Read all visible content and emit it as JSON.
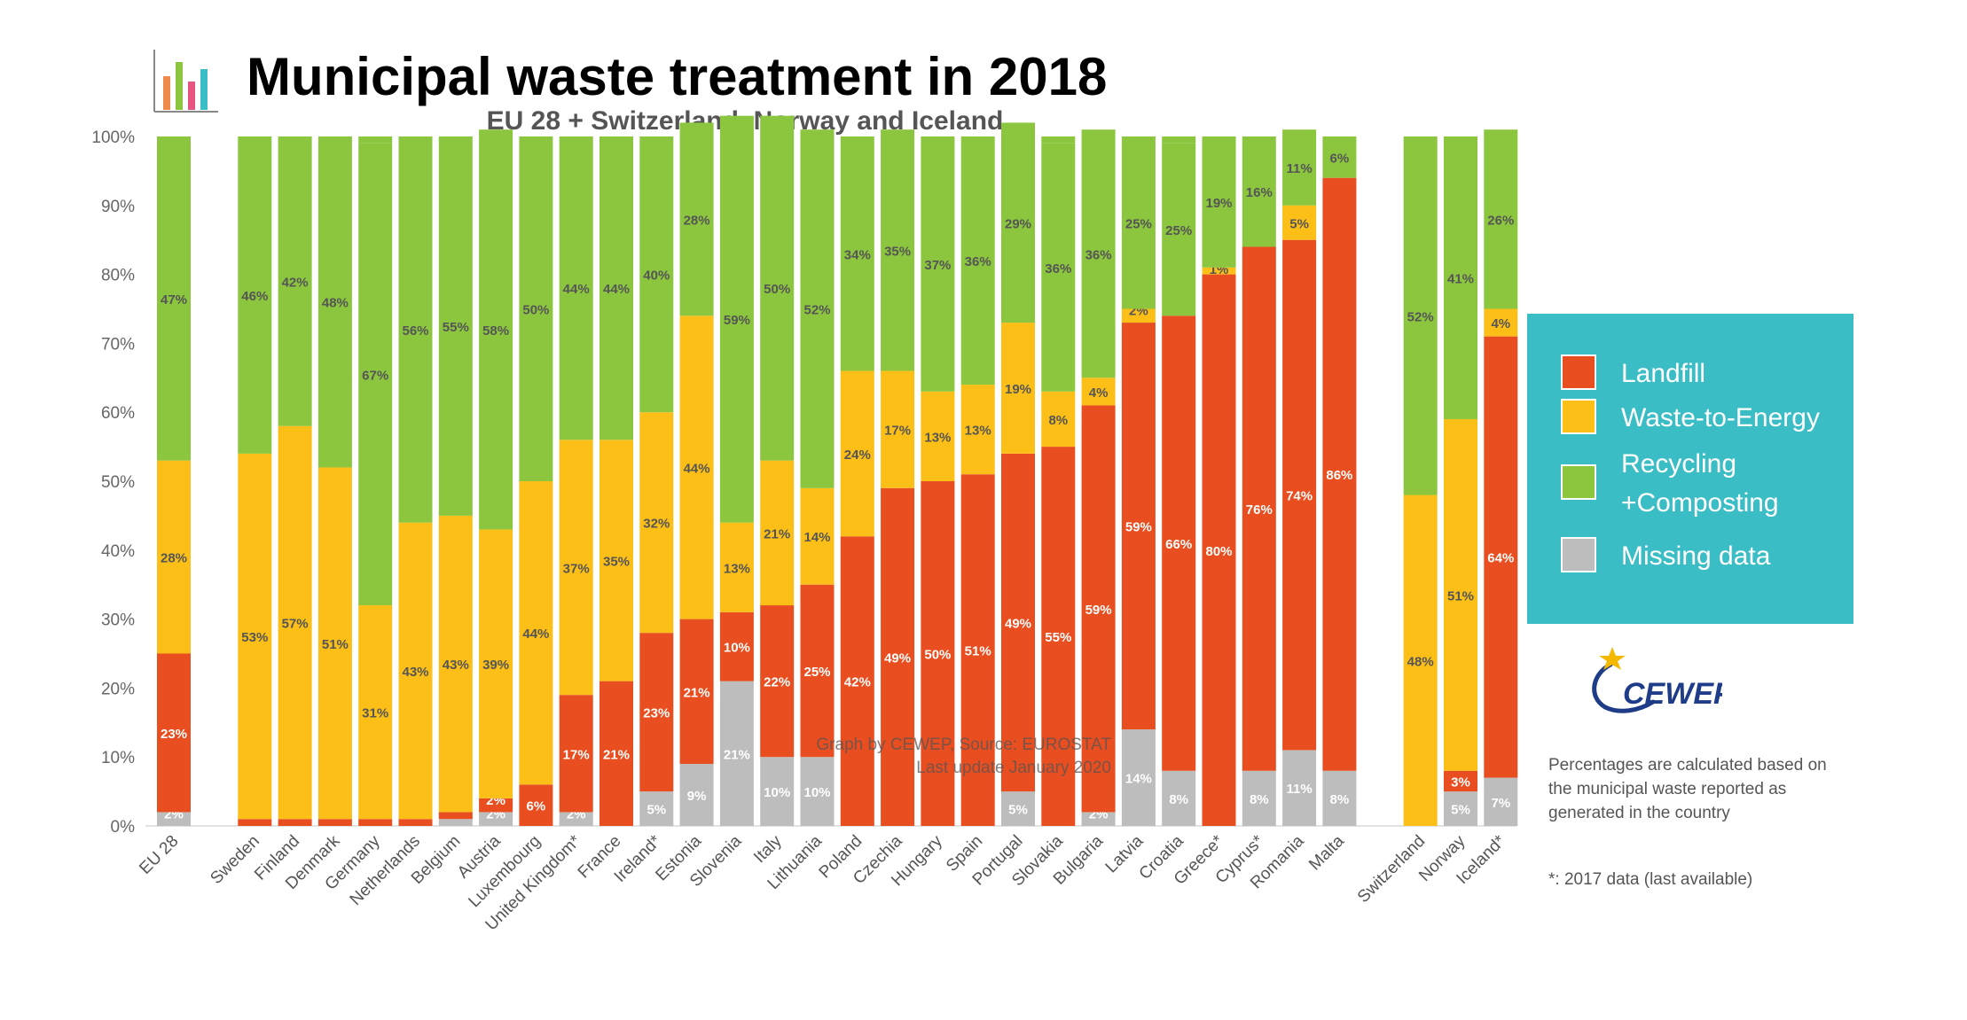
{
  "chart_data": {
    "type": "bar",
    "stacked": true,
    "percent": true,
    "title": "Municipal waste treatment in 2018",
    "subtitle": "EU 28 + Switzerland, Norway and Iceland",
    "ylim": [
      0,
      100
    ],
    "yticks": [
      "0%",
      "10%",
      "20%",
      "30%",
      "40%",
      "50%",
      "60%",
      "70%",
      "80%",
      "90%",
      "100%"
    ],
    "categories": [
      "EU 28",
      "Sweden",
      "Finland",
      "Denmark",
      "Germany",
      "Netherlands",
      "Belgium",
      "Austria",
      "Luxembourg",
      "United Kingdom*",
      "France",
      "Ireland*",
      "Estonia",
      "Slovenia",
      "Italy",
      "Lithuania",
      "Poland",
      "Czechia",
      "Hungary",
      "Spain",
      "Portugal",
      "Slovakia",
      "Bulgaria",
      "Latvia",
      "Croatia",
      "Greece*",
      "Cyprus*",
      "Romania",
      "Malta",
      "Switzerland",
      "Norway",
      "Iceland*"
    ],
    "category_groups": [
      [
        0,
        0
      ],
      [
        1,
        28
      ],
      [
        29,
        31
      ]
    ],
    "series": [
      {
        "name": "Missing data",
        "color": "#bdbdbd",
        "values": [
          2,
          0,
          0,
          0,
          0,
          0,
          1,
          2,
          0,
          2,
          0,
          5,
          9,
          21,
          10,
          10,
          0,
          0,
          0,
          0,
          5,
          0,
          2,
          14,
          8,
          0,
          8,
          11,
          8,
          0,
          5,
          7
        ],
        "labels": [
          "2%",
          "",
          "",
          "",
          "",
          "",
          "",
          "2%",
          "",
          "2%",
          "",
          "5%",
          "9%",
          "21%",
          "10%",
          "10%",
          "",
          "",
          "",
          "",
          "5%",
          "",
          "2%",
          "14%",
          "8%",
          "",
          "8%",
          "11%",
          "8%",
          "",
          "5%",
          "7%"
        ]
      },
      {
        "name": "Landfill",
        "color": "#e84e1f",
        "values": [
          23,
          1,
          1,
          1,
          1,
          1,
          1,
          2,
          6,
          17,
          21,
          23,
          21,
          10,
          22,
          25,
          42,
          49,
          50,
          51,
          49,
          55,
          59,
          59,
          66,
          80,
          76,
          74,
          86,
          0,
          3,
          64
        ],
        "labels": [
          "23%",
          "",
          "",
          "",
          "",
          "",
          "",
          "2%",
          "6%",
          "17%",
          "21%",
          "23%",
          "21%",
          "10%",
          "22%",
          "25%",
          "42%",
          "49%",
          "50%",
          "51%",
          "49%",
          "55%",
          "59%",
          "59%",
          "66%",
          "80%",
          "76%",
          "74%",
          "86%",
          "",
          "3%",
          "64%"
        ]
      },
      {
        "name": "Waste-to-Energy",
        "color": "#fbbf18",
        "values": [
          28,
          53,
          57,
          51,
          31,
          43,
          43,
          39,
          44,
          37,
          35,
          32,
          44,
          13,
          21,
          14,
          24,
          17,
          13,
          13,
          19,
          8,
          4,
          2,
          0,
          1,
          0,
          5,
          0,
          48,
          51,
          4
        ],
        "labels": [
          "28%",
          "53%",
          "57%",
          "51%",
          "31%",
          "43%",
          "43%",
          "39%",
          "44%",
          "37%",
          "35%",
          "32%",
          "44%",
          "13%",
          "21%",
          "14%",
          "24%",
          "17%",
          "13%",
          "13%",
          "19%",
          "8%",
          "4%",
          "2%",
          "",
          "1%",
          "",
          "5%",
          "",
          "48%",
          "51%",
          "4%"
        ]
      },
      {
        "name": "Recycling +Composting",
        "color": "#8cc63f",
        "values": [
          47,
          46,
          42,
          48,
          67,
          56,
          55,
          58,
          50,
          44,
          44,
          40,
          28,
          59,
          50,
          52,
          34,
          35,
          37,
          36,
          29,
          36,
          36,
          25,
          25,
          19,
          16,
          11,
          6,
          52,
          41,
          26
        ],
        "labels": [
          "47%",
          "46%",
          "42%",
          "48%",
          "67%",
          "56%",
          "55%",
          "58%",
          "50%",
          "44%",
          "44%",
          "40%",
          "28%",
          "59%",
          "50%",
          "52%",
          "34%",
          "35%",
          "37%",
          "36%",
          "29%",
          "36%",
          "36%",
          "25%",
          "25%",
          "19%",
          "16%",
          "11%",
          "6%",
          "52%",
          "41%",
          "26%"
        ]
      }
    ],
    "source_annotation": [
      "Graph by CEWEP, Source: EUROSTAT",
      "Last update January 2020"
    ],
    "legend_position": "right"
  },
  "legend": [
    {
      "label": "Landfill",
      "color": "#e84e1f"
    },
    {
      "label": "Waste-to-Energy",
      "color": "#fbbf18"
    },
    {
      "label": "Recycling",
      "label2": "+Composting",
      "color": "#8cc63f"
    },
    {
      "label": "Missing data",
      "color": "#bdbdbd"
    }
  ],
  "legend_background": "#3bbdc6",
  "logo_text": "CEWEP",
  "note": "Percentages are calculated based on the municipal waste reported as generated in the country",
  "footnote": "*: 2017 data (last available)"
}
